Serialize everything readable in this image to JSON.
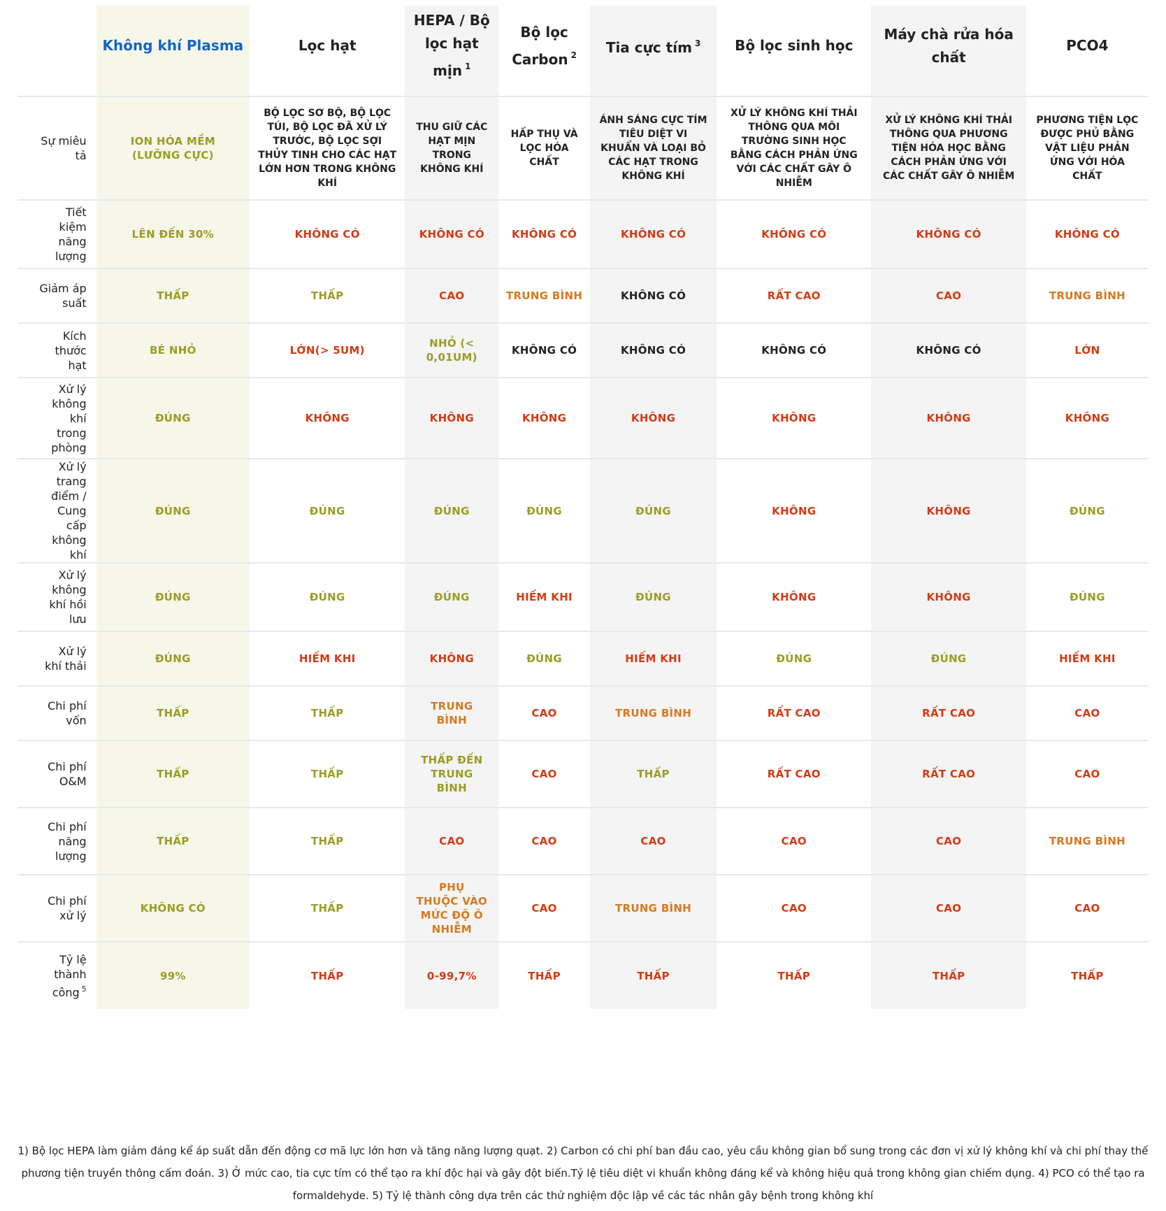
{
  "colors": {
    "green": "#9a9d23",
    "red": "#d63a14",
    "orange": "#d9791d",
    "black": "#222222",
    "accent_header": "#1565c0",
    "highlight_column": "#f6f7e9",
    "shaded_column": "#f4f4f4"
  },
  "headers": [
    {
      "text": "Không khí Plasma",
      "sup": ""
    },
    {
      "text": "Lọc hạt",
      "sup": ""
    },
    {
      "text": "HEPA / Bộ lọc hạt mịn",
      "sup": "1"
    },
    {
      "text": "Bộ lọc Carbon",
      "sup": "2"
    },
    {
      "text": "Tia cực tím",
      "sup": "3"
    },
    {
      "text": "Bộ lọc sinh học",
      "sup": ""
    },
    {
      "text": "Máy chà rửa hóa chất",
      "sup": ""
    },
    {
      "text": "PCO4",
      "sup": ""
    }
  ],
  "rows": [
    {
      "label": "Sự miêu tả",
      "label_sup": "",
      "cells": [
        {
          "text": "ION HÓA MỀM (LƯỠNG CỰC)",
          "color": "green"
        },
        {
          "text": "BỘ LỌC SƠ BỘ, BỘ LỌC TÚI, BỘ LỌC ĐÃ XỬ LÝ TRƯỚC, BỘ LỌC SỢI THỦY TINH CHO CÁC HẠT LỚN HƠN TRONG KHÔNG KHÍ",
          "color": "black"
        },
        {
          "text": "THU GIỮ CÁC HẠT MỊN TRONG KHÔNG KHÍ",
          "color": "black"
        },
        {
          "text": "HẤP THỤ VÀ LỌC HÓA CHẤT",
          "color": "black"
        },
        {
          "text": "ÁNH SÁNG CỰC TÍM TIÊU DIỆT VI KHUẨN VÀ LOẠI BỎ CÁC HẠT TRONG KHÔNG KHÍ",
          "color": "black"
        },
        {
          "text": "XỬ LÝ KHÔNG KHÍ THẢI THÔNG QUA MÔI TRƯỜNG SINH HỌC BẰNG CÁCH PHẢN ỨNG VỚI CÁC CHẤT GÂY Ô NHIỄM",
          "color": "black"
        },
        {
          "text": "XỬ LÝ KHÔNG KHÍ THẢI THÔNG QUA PHƯƠNG TIỆN HÓA HỌC BẰNG CÁCH PHẢN ỨNG VỚI CÁC CHẤT GÂY Ô NHIỄM",
          "color": "black"
        },
        {
          "text": "PHƯƠNG TIỆN LỌC ĐƯỢC PHỦ BẰNG VẬT LIỆU PHẢN ỨNG VỚI HÓA CHẤT",
          "color": "black"
        }
      ]
    },
    {
      "label": "Tiết kiệm năng lượng",
      "label_sup": "",
      "cells": [
        {
          "text": "LÊN ĐẾN 30%",
          "color": "green"
        },
        {
          "text": "KHÔNG CÓ",
          "color": "red"
        },
        {
          "text": "KHÔNG CÓ",
          "color": "red"
        },
        {
          "text": "KHÔNG CÓ",
          "color": "red"
        },
        {
          "text": "KHÔNG CÓ",
          "color": "red"
        },
        {
          "text": "KHÔNG CÓ",
          "color": "red"
        },
        {
          "text": "KHÔNG CÓ",
          "color": "red"
        },
        {
          "text": "KHÔNG CÓ",
          "color": "red"
        }
      ]
    },
    {
      "label": "Giảm áp suất",
      "label_sup": "",
      "cells": [
        {
          "text": "THẤP",
          "color": "green"
        },
        {
          "text": "THẤP",
          "color": "green"
        },
        {
          "text": "CAO",
          "color": "red"
        },
        {
          "text": "TRUNG BÌNH",
          "color": "orange"
        },
        {
          "text": "KHÔNG CÓ",
          "color": "black"
        },
        {
          "text": "RẤT CAO",
          "color": "red"
        },
        {
          "text": "CAO",
          "color": "red"
        },
        {
          "text": "TRUNG BÌNH",
          "color": "orange"
        }
      ]
    },
    {
      "label": "Kích thước hạt",
      "label_sup": "",
      "cells": [
        {
          "text": "BÉ NHỎ",
          "color": "green"
        },
        {
          "text": "LỚN(> 5UM)",
          "color": "red"
        },
        {
          "text": "NHỎ (< 0,01UM)",
          "color": "green"
        },
        {
          "text": "KHÔNG CÓ",
          "color": "black"
        },
        {
          "text": "KHÔNG CÓ",
          "color": "black"
        },
        {
          "text": "KHÔNG CÓ",
          "color": "black"
        },
        {
          "text": "KHÔNG CÓ",
          "color": "black"
        },
        {
          "text": "LỚN",
          "color": "red"
        }
      ]
    },
    {
      "label": "Xử lý không khí trong phòng",
      "label_sup": "",
      "cells": [
        {
          "text": "ĐÚNG",
          "color": "green"
        },
        {
          "text": "KHÔNG",
          "color": "red"
        },
        {
          "text": "KHÔNG",
          "color": "red"
        },
        {
          "text": "KHÔNG",
          "color": "red"
        },
        {
          "text": "KHÔNG",
          "color": "red"
        },
        {
          "text": "KHÔNG",
          "color": "red"
        },
        {
          "text": "KHÔNG",
          "color": "red"
        },
        {
          "text": "KHÔNG",
          "color": "red"
        }
      ]
    },
    {
      "label": "Xử lý trang điểm / Cung cấp không khí",
      "label_sup": "",
      "cells": [
        {
          "text": "ĐÚNG",
          "color": "green"
        },
        {
          "text": "ĐÚNG",
          "color": "green"
        },
        {
          "text": "ĐÚNG",
          "color": "green"
        },
        {
          "text": "ĐÚNG",
          "color": "green"
        },
        {
          "text": "ĐÚNG",
          "color": "green"
        },
        {
          "text": "KHÔNG",
          "color": "red"
        },
        {
          "text": "KHÔNG",
          "color": "red"
        },
        {
          "text": "ĐÚNG",
          "color": "green"
        }
      ]
    },
    {
      "label": "Xử lý không khí hồi lưu",
      "label_sup": "",
      "cells": [
        {
          "text": "ĐÚNG",
          "color": "green"
        },
        {
          "text": "ĐÚNG",
          "color": "green"
        },
        {
          "text": "ĐÚNG",
          "color": "green"
        },
        {
          "text": "HIẾM KHI",
          "color": "red"
        },
        {
          "text": "ĐÚNG",
          "color": "green"
        },
        {
          "text": "KHÔNG",
          "color": "red"
        },
        {
          "text": "KHÔNG",
          "color": "red"
        },
        {
          "text": "ĐÚNG",
          "color": "green"
        }
      ]
    },
    {
      "label": "Xử lý khí thải",
      "label_sup": "",
      "cells": [
        {
          "text": "ĐÚNG",
          "color": "green"
        },
        {
          "text": "HIẾM KHI",
          "color": "red"
        },
        {
          "text": "KHÔNG",
          "color": "red"
        },
        {
          "text": "ĐÚNG",
          "color": "green"
        },
        {
          "text": "HIẾM KHI",
          "color": "red"
        },
        {
          "text": "ĐÚNG",
          "color": "green"
        },
        {
          "text": "ĐÚNG",
          "color": "green"
        },
        {
          "text": "HIẾM KHI",
          "color": "red"
        }
      ]
    },
    {
      "label": "Chi phí vốn",
      "label_sup": "",
      "cells": [
        {
          "text": "THẤP",
          "color": "green"
        },
        {
          "text": "THẤP",
          "color": "green"
        },
        {
          "text": "TRUNG BÌNH",
          "color": "orange"
        },
        {
          "text": "CAO",
          "color": "red"
        },
        {
          "text": "TRUNG BÌNH",
          "color": "orange"
        },
        {
          "text": "RẤT CAO",
          "color": "red"
        },
        {
          "text": "RẤT CAO",
          "color": "red"
        },
        {
          "text": "CAO",
          "color": "red"
        }
      ]
    },
    {
      "label": "Chi phí O&M",
      "label_sup": "",
      "cells": [
        {
          "text": "THẤP",
          "color": "green"
        },
        {
          "text": "THẤP",
          "color": "green"
        },
        {
          "text": "THẤP ĐẾN TRUNG BÌNH",
          "color": "green"
        },
        {
          "text": "CAO",
          "color": "red"
        },
        {
          "text": "THẤP",
          "color": "green"
        },
        {
          "text": "RẤT CAO",
          "color": "red"
        },
        {
          "text": "RẤT CAO",
          "color": "red"
        },
        {
          "text": "CAO",
          "color": "red"
        }
      ]
    },
    {
      "label": "Chi phí năng lượng",
      "label_sup": "",
      "cells": [
        {
          "text": "THẤP",
          "color": "green"
        },
        {
          "text": "THẤP",
          "color": "green"
        },
        {
          "text": "CAO",
          "color": "red"
        },
        {
          "text": "CAO",
          "color": "red"
        },
        {
          "text": "CAO",
          "color": "red"
        },
        {
          "text": "CAO",
          "color": "red"
        },
        {
          "text": "CAO",
          "color": "red"
        },
        {
          "text": "TRUNG BÌNH",
          "color": "orange"
        }
      ]
    },
    {
      "label": "Chi phí xử lý",
      "label_sup": "",
      "cells": [
        {
          "text": "KHÔNG CÓ",
          "color": "green"
        },
        {
          "text": "THẤP",
          "color": "green"
        },
        {
          "text": "PHỤ THUỘC VÀO MỨC ĐỘ Ô NHIỄM",
          "color": "orange"
        },
        {
          "text": "CAO",
          "color": "red"
        },
        {
          "text": "TRUNG BÌNH",
          "color": "orange"
        },
        {
          "text": "CAO",
          "color": "red"
        },
        {
          "text": "CAO",
          "color": "red"
        },
        {
          "text": "CAO",
          "color": "red"
        }
      ]
    },
    {
      "label": "Tỷ lệ thành công",
      "label_sup": "5",
      "cells": [
        {
          "text": "99%",
          "color": "green"
        },
        {
          "text": "THẤP",
          "color": "red"
        },
        {
          "text": "0-99,7%",
          "color": "red"
        },
        {
          "text": "THẤP",
          "color": "red"
        },
        {
          "text": "THẤP",
          "color": "red"
        },
        {
          "text": "THẤP",
          "color": "red"
        },
        {
          "text": "THẤP",
          "color": "red"
        },
        {
          "text": "THẤP",
          "color": "red"
        }
      ]
    }
  ],
  "footnotes": "1) Bộ lọc HEPA làm giảm đáng kể áp suất dẫn đến động cơ mã lực lớn hơn và tăng năng lượng quạt. 2) Carbon có chi phí ban đầu cao, yêu cầu không gian bổ sung trong các đơn vị xử lý không khí và chi phí thay thế phương tiện truyền thông cấm đoán. 3) Ở mức cao, tia cực tím có thể tạo ra khí độc hại và gây đột biến.Tỷ lệ tiêu diệt vi khuẩn không đáng kể và không hiệu quả trong không gian chiếm dụng. 4) PCO có thể tạo ra formaldehyde. 5) Tỷ lệ thành công dựa trên các thử nghiệm độc lập về các tác nhân gây bệnh trong không khí"
}
